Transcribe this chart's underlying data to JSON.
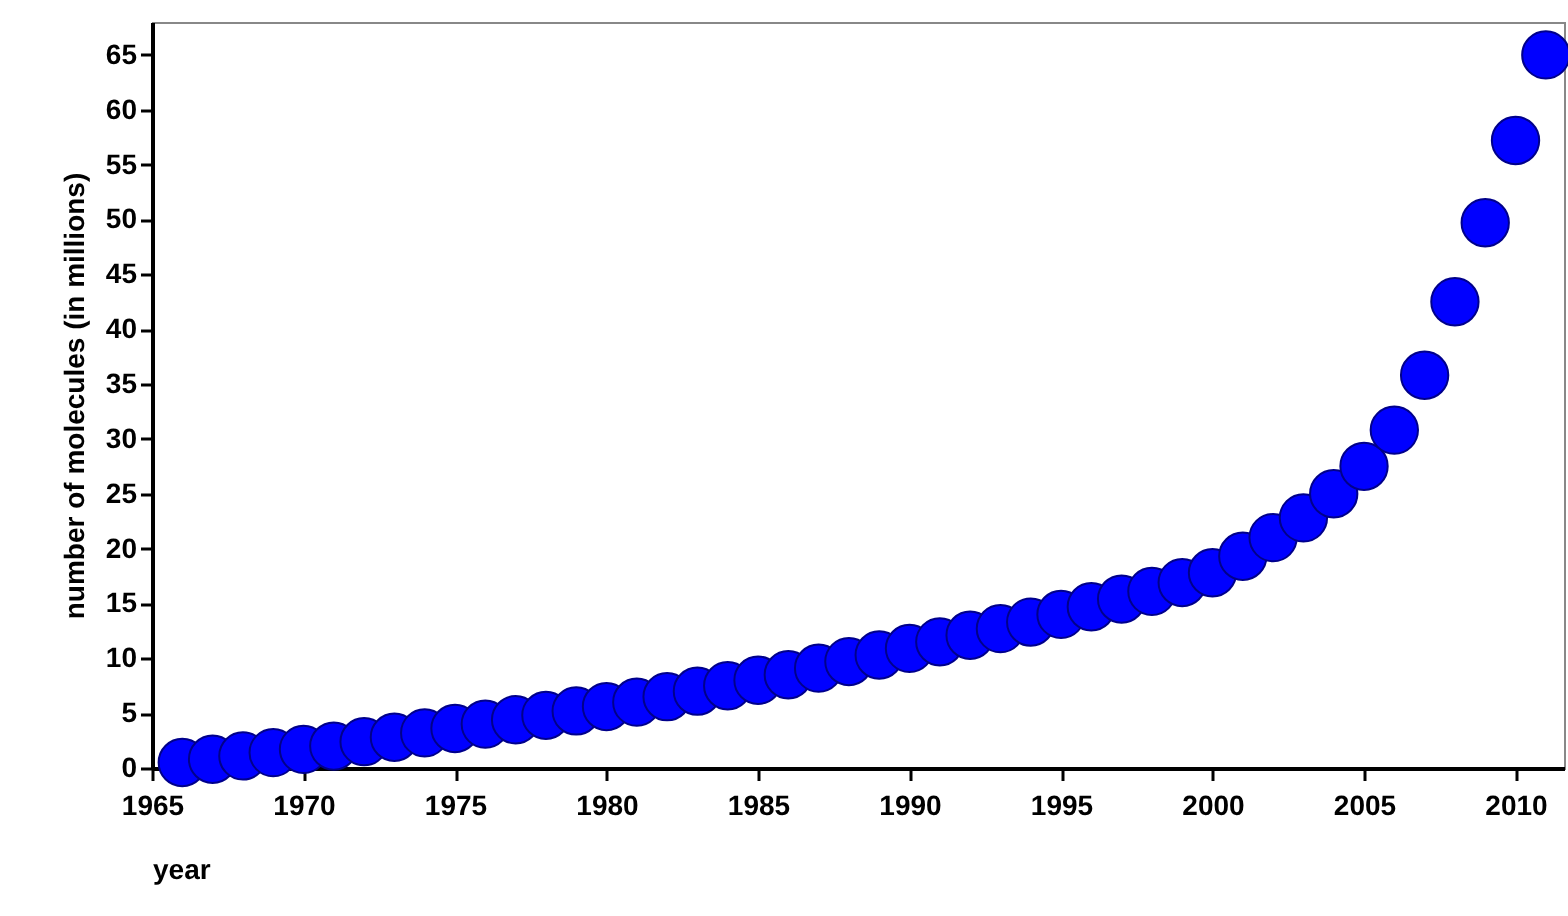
{
  "chart_data": {
    "type": "scatter",
    "xlabel": "year",
    "ylabel": "number of molecules (in millions)",
    "x": [
      1966,
      1967,
      1968,
      1969,
      1970,
      1971,
      1972,
      1973,
      1974,
      1975,
      1976,
      1977,
      1978,
      1979,
      1980,
      1981,
      1982,
      1983,
      1984,
      1985,
      1986,
      1987,
      1988,
      1989,
      1990,
      1991,
      1992,
      1993,
      1994,
      1995,
      1996,
      1997,
      1998,
      1999,
      2000,
      2001,
      2002,
      2003,
      2004,
      2005,
      2006,
      2007,
      2008,
      2009,
      2010,
      2011
    ],
    "values": [
      0.5,
      0.8,
      1.1,
      1.4,
      1.7,
      2.0,
      2.4,
      2.8,
      3.2,
      3.6,
      4.0,
      4.4,
      4.8,
      5.2,
      5.6,
      6.0,
      6.5,
      7.0,
      7.5,
      8.0,
      8.5,
      9.1,
      9.7,
      10.3,
      10.9,
      11.5,
      12.1,
      12.7,
      13.3,
      14.0,
      14.7,
      15.4,
      16.1,
      16.9,
      17.8,
      19.3,
      21,
      22.8,
      25,
      27.5,
      30.8,
      35.8,
      42.5,
      49.7,
      57.2,
      65
    ],
    "color": "#0000ff",
    "marker": "circle",
    "grid": false,
    "xlim": [
      1965,
      2011.6
    ],
    "xticks": [
      1965,
      1970,
      1975,
      1980,
      1985,
      1990,
      1995,
      2000,
      2005,
      2010
    ],
    "ylim": [
      0,
      68
    ],
    "yticks": [
      0,
      5,
      10,
      15,
      20,
      25,
      30,
      35,
      40,
      45,
      50,
      55,
      60,
      65
    ]
  }
}
